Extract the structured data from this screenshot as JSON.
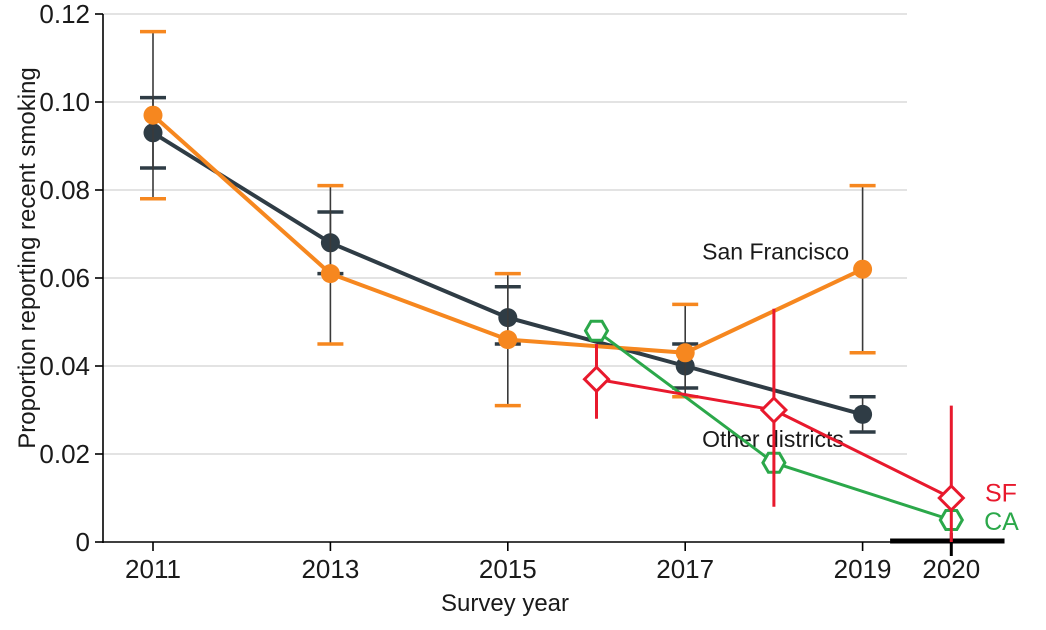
{
  "figure": {
    "background": "#ffffff"
  },
  "colors": {
    "grid": "#e3e3e3",
    "axis": "#000000",
    "tick_text": "#1a1a1a",
    "error_line": "#3a3a3a",
    "marker_fill_open": "#ffffff",
    "san_francisco_orange": "#f6871f",
    "other_districts_dark": "#2f3c45",
    "sf_red": "#e8192d",
    "ca_green": "#2ba84a"
  },
  "chart_data": {
    "type": "line",
    "title": "",
    "xlabel": "Survey year",
    "ylabel": "Proportion reporting recent smoking",
    "xlim": [
      2010.45,
      2021.05
    ],
    "ylim": [
      0,
      0.12
    ],
    "grid": "horizontal",
    "x_ticks": [
      {
        "year": 2011,
        "label": "2011"
      },
      {
        "year": 2013,
        "label": "2013"
      },
      {
        "year": 2015,
        "label": "2015"
      },
      {
        "year": 2017,
        "label": "2017"
      },
      {
        "year": 2019,
        "label": "2019"
      },
      {
        "year": 2020,
        "label": "2020",
        "emphasis": true
      }
    ],
    "y_ticks": [
      {
        "value": 0,
        "label": "0"
      },
      {
        "value": 0.02,
        "label": "0.02"
      },
      {
        "value": 0.04,
        "label": "0.04"
      },
      {
        "value": 0.06,
        "label": "0.06"
      },
      {
        "value": 0.08,
        "label": "0.08"
      },
      {
        "value": 0.1,
        "label": "0.10"
      },
      {
        "value": 0.12,
        "label": "0.12"
      }
    ],
    "axis_extension_2020": {
      "from_year": 2019.31,
      "to_year": 2020.6
    },
    "series": [
      {
        "name": "Other districts",
        "color": "#2f3c45",
        "marker": "filled-circle",
        "line_width": 4,
        "error_style": "thin-line-colored-caps",
        "points": [
          {
            "year": 2011,
            "value": 0.093,
            "ci_low": 0.085,
            "ci_high": 0.101
          },
          {
            "year": 2013,
            "value": 0.068,
            "ci_low": 0.061,
            "ci_high": 0.075
          },
          {
            "year": 2015,
            "value": 0.051,
            "ci_low": 0.045,
            "ci_high": 0.058
          },
          {
            "year": 2017,
            "value": 0.04,
            "ci_low": 0.035,
            "ci_high": 0.045
          },
          {
            "year": 2019,
            "value": 0.029,
            "ci_low": 0.025,
            "ci_high": 0.033
          }
        ],
        "label": {
          "text": "Other districts",
          "color": "#1a1a1a",
          "year": 2017.99,
          "value": 0.0234,
          "anchor": "middle",
          "font_size": 23
        }
      },
      {
        "name": "San Francisco",
        "color": "#f6871f",
        "marker": "filled-circle",
        "line_width": 4,
        "error_style": "thin-line-colored-caps",
        "points": [
          {
            "year": 2011,
            "value": 0.097,
            "ci_low": 0.078,
            "ci_high": 0.116
          },
          {
            "year": 2013,
            "value": 0.061,
            "ci_low": 0.045,
            "ci_high": 0.081
          },
          {
            "year": 2015,
            "value": 0.046,
            "ci_low": 0.031,
            "ci_high": 0.061
          },
          {
            "year": 2017,
            "value": 0.043,
            "ci_low": 0.033,
            "ci_high": 0.054
          },
          {
            "year": 2019,
            "value": 0.062,
            "ci_low": 0.043,
            "ci_high": 0.081
          }
        ],
        "label": {
          "text": "San Francisco",
          "color": "#1a1a1a",
          "year": 2018.02,
          "value": 0.066,
          "anchor": "middle",
          "font_size": 23
        }
      },
      {
        "name": "CA",
        "color": "#2ba84a",
        "marker": "open-hexagon",
        "line_width": 3,
        "error_style": "none",
        "points": [
          {
            "year": 2016,
            "value": 0.048,
            "ci_low": null,
            "ci_high": null
          },
          {
            "year": 2018,
            "value": 0.018,
            "ci_low": null,
            "ci_high": null
          },
          {
            "year": 2020,
            "value": 0.005,
            "ci_low": null,
            "ci_high": null
          }
        ],
        "label": {
          "text": "CA",
          "color": "#2ba84a",
          "year": 2020.37,
          "value": 0.0048,
          "anchor": "start",
          "font_size": 25
        }
      },
      {
        "name": "SF",
        "color": "#e8192d",
        "marker": "open-diamond",
        "line_width": 3,
        "error_style": "colored-line-no-caps",
        "points": [
          {
            "year": 2016,
            "value": 0.037,
            "ci_low": 0.028,
            "ci_high": 0.045
          },
          {
            "year": 2018,
            "value": 0.03,
            "ci_low": 0.008,
            "ci_high": 0.053
          },
          {
            "year": 2020,
            "value": 0.01,
            "ci_low": 0.0,
            "ci_high": 0.031
          }
        ],
        "label": {
          "text": "SF",
          "color": "#e8192d",
          "year": 2020.38,
          "value": 0.0112,
          "anchor": "start",
          "font_size": 25
        }
      }
    ]
  }
}
